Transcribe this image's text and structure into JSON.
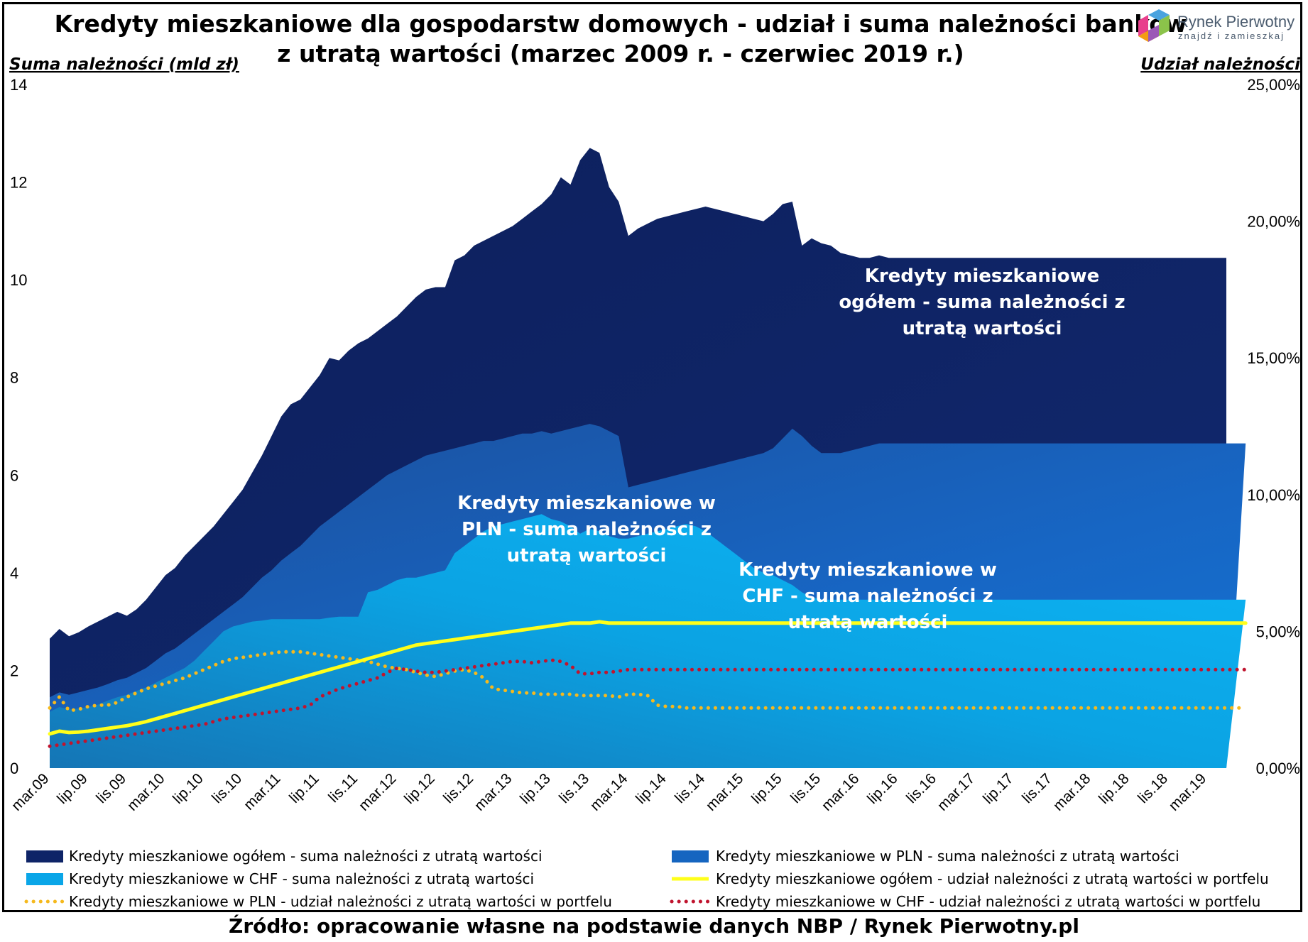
{
  "chart_data": {
    "type": "area",
    "title_line1": "Kredyty mieszkaniowe dla gospodarstw domowych - udział i suma należności banków",
    "title_line2": "z utratą wartości (marzec 2009 r. - czerwiec 2019 r.)",
    "y_left_label": "Suma należności (mld zł)",
    "y_right_label": "Udział należności",
    "y_left_ticks": [
      "0",
      "2",
      "4",
      "6",
      "8",
      "10",
      "12",
      "14"
    ],
    "y_right_ticks": [
      "0,00%",
      "5,00%",
      "10,00%",
      "15,00%",
      "20,00%",
      "25,00%"
    ],
    "ylim_left": [
      0,
      14
    ],
    "ylim_right": [
      0,
      25
    ],
    "x_tick_labels": [
      "mar.09",
      "lip.09",
      "lis.09",
      "mar.10",
      "lip.10",
      "lis.10",
      "mar.11",
      "lip.11",
      "lis.11",
      "mar.12",
      "lip.12",
      "lis.12",
      "mar.13",
      "lip.13",
      "lis.13",
      "mar.14",
      "lip.14",
      "lis.14",
      "mar.15",
      "lip.15",
      "lis.15",
      "mar.16",
      "lip.16",
      "lis.16",
      "mar.17",
      "lip.17",
      "lis.17",
      "mar.18",
      "lip.18",
      "lis.18",
      "mar.19"
    ],
    "x_start": "mar.09",
    "x_end": "cze.19",
    "series": [
      {
        "name": "Kredyty mieszkaniowe ogółem - suma należności z utratą wartości",
        "kind": "area",
        "axis": "left",
        "color": "#0e2467",
        "values": [
          2.65,
          2.85,
          2.7,
          2.78,
          2.9,
          3.0,
          3.1,
          3.2,
          3.12,
          3.25,
          3.45,
          3.7,
          3.95,
          4.1,
          4.35,
          4.55,
          4.75,
          4.95,
          5.2,
          5.45,
          5.7,
          6.05,
          6.4,
          6.8,
          7.2,
          7.45,
          7.55,
          7.8,
          8.05,
          8.4,
          8.35,
          8.55,
          8.7,
          8.8,
          8.95,
          9.1,
          9.25,
          9.45,
          9.65,
          9.8,
          9.85,
          9.85,
          10.4,
          10.5,
          10.7,
          10.8,
          10.9,
          11.0,
          11.1,
          11.25,
          11.4,
          11.55,
          11.75,
          12.1,
          11.95,
          12.45,
          12.7,
          12.6,
          11.9,
          11.6,
          10.9,
          11.05,
          11.15,
          11.25,
          11.3,
          11.35,
          11.4,
          11.45,
          11.5,
          11.45,
          11.4,
          11.35,
          11.3,
          11.25,
          11.2,
          11.35,
          11.55,
          11.6,
          10.7,
          10.85,
          10.75,
          10.7,
          10.55,
          10.5,
          10.45,
          10.45,
          10.5,
          10.45,
          10.45,
          10.45,
          10.45,
          10.45,
          10.45,
          10.45,
          10.45,
          10.45,
          10.45,
          10.45,
          10.45,
          10.45,
          10.45,
          10.45,
          10.45,
          10.45,
          10.45,
          10.45,
          10.45,
          10.45,
          10.45,
          10.45,
          10.45,
          10.45,
          10.45,
          10.45,
          10.45,
          10.45,
          10.45,
          10.45,
          10.45,
          10.45,
          10.45,
          10.45,
          10.45
        ]
      },
      {
        "name": "Kredyty mieszkaniowe w PLN - suma należności z utratą wartości",
        "kind": "area",
        "axis": "left",
        "color": "#1565c0",
        "values": [
          1.45,
          1.55,
          1.5,
          1.55,
          1.6,
          1.65,
          1.72,
          1.8,
          1.85,
          1.95,
          2.05,
          2.2,
          2.35,
          2.45,
          2.6,
          2.75,
          2.9,
          3.05,
          3.2,
          3.35,
          3.5,
          3.7,
          3.9,
          4.05,
          4.25,
          4.4,
          4.55,
          4.75,
          4.95,
          5.1,
          5.25,
          5.4,
          5.55,
          5.7,
          5.85,
          6.0,
          6.1,
          6.2,
          6.3,
          6.4,
          6.45,
          6.5,
          6.55,
          6.6,
          6.65,
          6.7,
          6.7,
          6.75,
          6.8,
          6.85,
          6.85,
          6.9,
          6.85,
          6.9,
          6.95,
          7.0,
          7.05,
          7.0,
          6.9,
          6.8,
          5.75,
          5.8,
          5.85,
          5.9,
          5.95,
          6.0,
          6.05,
          6.1,
          6.15,
          6.2,
          6.25,
          6.3,
          6.35,
          6.4,
          6.45,
          6.55,
          6.75,
          6.95,
          6.8,
          6.6,
          6.45,
          6.45,
          6.45,
          6.5,
          6.55,
          6.6,
          6.65,
          6.65,
          6.65,
          6.65,
          6.65,
          6.65,
          6.65,
          6.65,
          6.65,
          6.65,
          6.65,
          6.65,
          6.65,
          6.65,
          6.65,
          6.65,
          6.65,
          6.65,
          6.65,
          6.65,
          6.65,
          6.65,
          6.65,
          6.65,
          6.65,
          6.65,
          6.65,
          6.65,
          6.65,
          6.65,
          6.65,
          6.65,
          6.65,
          6.65,
          6.65,
          6.65,
          6.65,
          6.65,
          6.65
        ]
      },
      {
        "name": "Kredyty mieszkaniowe w CHF - suma należności z utratą wartości",
        "kind": "area",
        "axis": "left",
        "color": "#0aa6e8",
        "values": [
          1.15,
          1.25,
          1.2,
          1.22,
          1.25,
          1.3,
          1.38,
          1.45,
          1.5,
          1.58,
          1.65,
          1.75,
          1.85,
          1.95,
          2.05,
          2.2,
          2.4,
          2.6,
          2.8,
          2.9,
          2.95,
          3.0,
          3.02,
          3.05,
          3.05,
          3.05,
          3.05,
          3.05,
          3.05,
          3.08,
          3.1,
          3.1,
          3.1,
          3.6,
          3.65,
          3.75,
          3.85,
          3.9,
          3.9,
          3.95,
          4.0,
          4.05,
          4.4,
          4.55,
          4.7,
          4.85,
          4.95,
          5.0,
          5.05,
          5.1,
          5.15,
          5.2,
          5.1,
          5.05,
          4.95,
          4.8,
          4.9,
          4.85,
          4.75,
          4.7,
          4.7,
          4.75,
          4.8,
          4.85,
          4.9,
          4.95,
          5.0,
          4.95,
          4.85,
          4.7,
          4.55,
          4.4,
          4.25,
          4.1,
          4.0,
          3.95,
          3.85,
          3.75,
          3.6,
          3.5,
          3.45,
          3.45,
          3.45,
          3.45,
          3.45,
          3.45,
          3.45,
          3.45,
          3.45,
          3.45,
          3.45,
          3.45,
          3.45,
          3.45,
          3.45,
          3.45,
          3.45,
          3.45,
          3.45,
          3.45,
          3.45,
          3.45,
          3.45,
          3.45,
          3.45,
          3.45,
          3.45,
          3.45,
          3.45,
          3.45,
          3.45,
          3.45,
          3.45,
          3.45,
          3.45,
          3.45,
          3.45,
          3.45,
          3.45,
          3.45,
          3.45,
          3.45,
          3.45,
          3.45,
          3.45
        ]
      },
      {
        "name": "Kredyty mieszkaniowe ogółem - udział należności z utratą wartości w portfelu",
        "kind": "line",
        "axis": "right",
        "color": "#ffff1a",
        "values": [
          1.25,
          1.35,
          1.3,
          1.32,
          1.35,
          1.4,
          1.45,
          1.5,
          1.55,
          1.62,
          1.7,
          1.8,
          1.9,
          2.0,
          2.1,
          2.2,
          2.3,
          2.4,
          2.5,
          2.6,
          2.7,
          2.8,
          2.9,
          3.0,
          3.1,
          3.2,
          3.3,
          3.4,
          3.5,
          3.6,
          3.7,
          3.8,
          3.9,
          4.0,
          4.1,
          4.2,
          4.3,
          4.4,
          4.5,
          4.55,
          4.6,
          4.65,
          4.7,
          4.75,
          4.8,
          4.85,
          4.9,
          4.95,
          5.0,
          5.05,
          5.1,
          5.15,
          5.2,
          5.25,
          5.3,
          5.3,
          5.3,
          5.35,
          5.3,
          5.3,
          5.3,
          5.3,
          5.3,
          5.3,
          5.3,
          5.3,
          5.3,
          5.3,
          5.3,
          5.3,
          5.3,
          5.3,
          5.3,
          5.3,
          5.3,
          5.3,
          5.3,
          5.3,
          5.3,
          5.3,
          5.3,
          5.3,
          5.3,
          5.3,
          5.3,
          5.3,
          5.3,
          5.3,
          5.3,
          5.3,
          5.3,
          5.3,
          5.3,
          5.3,
          5.3,
          5.3,
          5.3,
          5.3,
          5.3,
          5.3,
          5.3,
          5.3,
          5.3,
          5.3,
          5.3,
          5.3,
          5.3,
          5.3,
          5.3,
          5.3,
          5.3,
          5.3,
          5.3,
          5.3,
          5.3,
          5.3,
          5.3,
          5.3,
          5.3,
          5.3,
          5.3,
          5.3,
          5.3,
          5.3,
          5.3
        ]
      },
      {
        "name": "Kredyty mieszkaniowe w PLN - udział należności z utratą wartości w portfelu",
        "kind": "dotted",
        "axis": "right",
        "color": "#f5b91e",
        "values": [
          2.2,
          2.6,
          2.1,
          2.15,
          2.25,
          2.3,
          2.3,
          2.4,
          2.6,
          2.75,
          2.9,
          3.0,
          3.1,
          3.2,
          3.3,
          3.45,
          3.6,
          3.75,
          3.9,
          4.0,
          4.05,
          4.1,
          4.15,
          4.2,
          4.25,
          4.25,
          4.25,
          4.2,
          4.15,
          4.1,
          4.05,
          4.0,
          3.95,
          3.9,
          3.8,
          3.7,
          3.65,
          3.6,
          3.5,
          3.4,
          3.35,
          3.45,
          3.55,
          3.6,
          3.5,
          3.3,
          2.9,
          2.85,
          2.8,
          2.75,
          2.75,
          2.7,
          2.7,
          2.7,
          2.7,
          2.65,
          2.65,
          2.65,
          2.65,
          2.6,
          2.7,
          2.7,
          2.65,
          2.3,
          2.25,
          2.25,
          2.2,
          2.2,
          2.2,
          2.2,
          2.2,
          2.2,
          2.2,
          2.2,
          2.2,
          2.2,
          2.2,
          2.2,
          2.2,
          2.2,
          2.2,
          2.2,
          2.2,
          2.2,
          2.2,
          2.2,
          2.2,
          2.2,
          2.2,
          2.2,
          2.2,
          2.2,
          2.2,
          2.2,
          2.2,
          2.2,
          2.2,
          2.2,
          2.2,
          2.2,
          2.2,
          2.2,
          2.2,
          2.2,
          2.2,
          2.2,
          2.2,
          2.2,
          2.2,
          2.2,
          2.2,
          2.2,
          2.2,
          2.2,
          2.2,
          2.2,
          2.2,
          2.2,
          2.2,
          2.2,
          2.2,
          2.2,
          2.2,
          2.2,
          2.2
        ]
      },
      {
        "name": "Kredyty mieszkaniowe w CHF - udział należności z utratą wartości w portfelu",
        "kind": "dotted",
        "axis": "right",
        "color": "#c0142e",
        "values": [
          0.8,
          0.85,
          0.9,
          0.95,
          1.0,
          1.05,
          1.1,
          1.15,
          1.2,
          1.25,
          1.3,
          1.35,
          1.4,
          1.45,
          1.5,
          1.55,
          1.6,
          1.7,
          1.8,
          1.85,
          1.9,
          1.95,
          2.0,
          2.05,
          2.1,
          2.15,
          2.2,
          2.3,
          2.6,
          2.75,
          2.9,
          3.0,
          3.1,
          3.2,
          3.3,
          3.5,
          3.65,
          3.6,
          3.55,
          3.5,
          3.5,
          3.55,
          3.6,
          3.65,
          3.7,
          3.75,
          3.8,
          3.85,
          3.9,
          3.9,
          3.85,
          3.9,
          3.95,
          3.9,
          3.75,
          3.45,
          3.45,
          3.5,
          3.5,
          3.55,
          3.6,
          3.6,
          3.6,
          3.6,
          3.6,
          3.6,
          3.6,
          3.6,
          3.6,
          3.6,
          3.6,
          3.6,
          3.6,
          3.6,
          3.6,
          3.6,
          3.6,
          3.6,
          3.6,
          3.6,
          3.6,
          3.6,
          3.6,
          3.6,
          3.6,
          3.6,
          3.6,
          3.6,
          3.6,
          3.6,
          3.6,
          3.6,
          3.6,
          3.6,
          3.6,
          3.6,
          3.6,
          3.6,
          3.6,
          3.6,
          3.6,
          3.6,
          3.6,
          3.6,
          3.6,
          3.6,
          3.6,
          3.6,
          3.6,
          3.6,
          3.6,
          3.6,
          3.6,
          3.6,
          3.6,
          3.6,
          3.6,
          3.6,
          3.6,
          3.6,
          3.6,
          3.6,
          3.6,
          3.6,
          3.6
        ]
      }
    ],
    "annotations": [
      {
        "lines": [
          "Kredyty mieszkaniowe",
          "ogółem - suma należności z",
          "utratą wartości"
        ]
      },
      {
        "lines": [
          "Kredyty mieszkaniowe w",
          "PLN - suma należności z",
          "utratą wartości"
        ]
      },
      {
        "lines": [
          "Kredyty mieszkaniowe w",
          "CHF - suma należności z",
          "utratą wartości"
        ]
      }
    ],
    "legend_position": "bottom"
  },
  "logo": {
    "name": "Rynek Pierwotny",
    "tagline": "znajdź i zamieszkaj"
  },
  "source": "Źródło: opracowanie własne na podstawie danych NBP / Rynek Pierwotny.pl"
}
